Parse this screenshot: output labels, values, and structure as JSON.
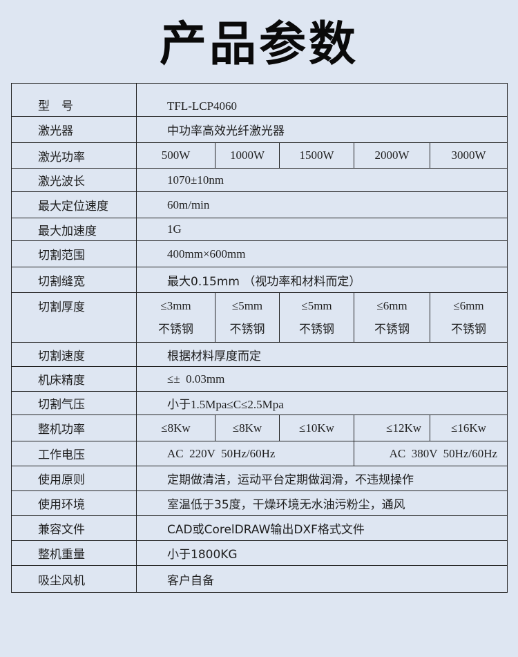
{
  "title": "产品参数",
  "rows": {
    "model": {
      "label": "型　号",
      "value": "TFL-LCP4060"
    },
    "laser": {
      "label": "激光器",
      "value": "中功率高效光纤激光器"
    },
    "power": {
      "label": "激光功率",
      "values": [
        "500W",
        "1000W",
        "1500W",
        "2000W",
        "3000W"
      ]
    },
    "wavelength": {
      "label": "激光波长",
      "value": "1070±10nm"
    },
    "pos_speed": {
      "label": "最大定位速度",
      "value": "60m/min"
    },
    "accel": {
      "label": "最大加速度",
      "value": "1G"
    },
    "range": {
      "label": "切割范围",
      "value": "400mm×600mm"
    },
    "kerf": {
      "label": "切割缝宽",
      "value": "最大0.15mm （视功率和材料而定）"
    },
    "thickness": {
      "label": "切割厚度",
      "values": [
        "≤3mm",
        "≤5mm",
        "≤5mm",
        "≤6mm",
        "≤6mm"
      ],
      "material": "不锈钢"
    },
    "cut_speed": {
      "label": "切割速度",
      "value": "根据材料厚度而定"
    },
    "precision": {
      "label": "机床精度",
      "value": "≤±  0.03mm"
    },
    "pressure": {
      "label": "切割气压",
      "value": "小于1.5Mpa≤C≤2.5Mpa"
    },
    "machine_power": {
      "label": "整机功率",
      "values": [
        "≤8Kw",
        "≤8Kw",
        "≤10Kw",
        "≤12Kw",
        "≤16Kw"
      ]
    },
    "voltage": {
      "label": "工作电压",
      "values": [
        "AC  220V  50Hz/60Hz",
        "AC  380V  50Hz/60Hz"
      ]
    },
    "principle": {
      "label": "使用原则",
      "value": "定期做清洁，运动平台定期做润滑，不违规操作"
    },
    "environment": {
      "label": "使用环境",
      "value": "室温低于35度，干燥环境无水油污粉尘，通风"
    },
    "files": {
      "label": "兼容文件",
      "value": "CAD或CorelDRAW输出DXF格式文件"
    },
    "weight": {
      "label": "整机重量",
      "value": "小于1800KG"
    },
    "fan": {
      "label": "吸尘风机",
      "value": "客户自备"
    }
  }
}
